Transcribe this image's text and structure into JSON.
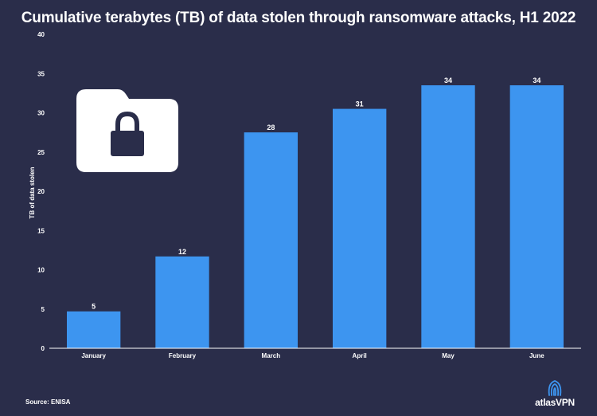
{
  "title": "Cumulative terabytes (TB) of data stolen through ransomware attacks, H1 2022",
  "source": "Source: ENISA",
  "brand": {
    "text": "atlas",
    "text_bold": "VPN",
    "icon": "atlasvpn-logo-icon"
  },
  "decoration": {
    "icon": "locked-folder-icon",
    "color": "#ffffff",
    "lock_color": "#2a2d4a"
  },
  "colors": {
    "background": "#2a2d4a",
    "bar": "#3d95f0",
    "text": "#ffffff",
    "axis": "#ffffff"
  },
  "chart_data": {
    "type": "bar",
    "categories": [
      "January",
      "February",
      "March",
      "April",
      "May",
      "June"
    ],
    "values": [
      5,
      12,
      28,
      31,
      34,
      34
    ],
    "value_positions": [
      4.7,
      11.7,
      27.5,
      30.5,
      33.5,
      33.5
    ],
    "title": "Cumulative terabytes (TB) of data stolen through ransomware attacks, H1 2022",
    "xlabel": "",
    "ylabel": "TB of data stolen",
    "ylim": [
      0,
      40
    ],
    "yticks": [
      0,
      5,
      10,
      15,
      20,
      25,
      30,
      35,
      40
    ],
    "grid": false,
    "legend": "none",
    "data_labels": true
  }
}
